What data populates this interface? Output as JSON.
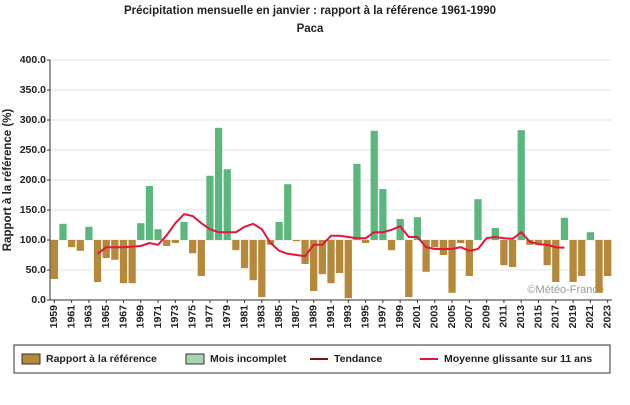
{
  "chart_data": {
    "type": "bar",
    "title": "Précipitation mensuelle en janvier : rapport à la référence 1961-1990",
    "subtitle": "Paca",
    "y_label": "Rapport à la référence (%)",
    "annotation": "©Météo-France",
    "categories": [
      "1959",
      null,
      "1961",
      null,
      "1963",
      null,
      "1965",
      null,
      "1967",
      null,
      "1969",
      null,
      "1971",
      null,
      "1973",
      null,
      "1975",
      null,
      "1977",
      null,
      "1979",
      null,
      "1981",
      null,
      "1983",
      null,
      "1985",
      null,
      "1987",
      null,
      "1989",
      null,
      "1991",
      null,
      "1993",
      null,
      "1995",
      null,
      "1997",
      null,
      "1999",
      null,
      "2001",
      null,
      "2003",
      null,
      "2005",
      null,
      "2007",
      null,
      "2009",
      null,
      "2011",
      null,
      "2013",
      null,
      "2015",
      null,
      "2017",
      null,
      "2019",
      null,
      "2021",
      null,
      "2023"
    ],
    "bar_base": 100,
    "series": [
      {
        "name": "Rapport à la référence",
        "color": "#b5883a",
        "color_above": "#5cb67e",
        "values": [
          35,
          127,
          88,
          82,
          122,
          30,
          70,
          67,
          28,
          28,
          128,
          190,
          118,
          90,
          95,
          130,
          78,
          40,
          207,
          287,
          218,
          83,
          53,
          33,
          5,
          92,
          130,
          193,
          98,
          60,
          15,
          43,
          28,
          45,
          3,
          227,
          95,
          282,
          185,
          83,
          135,
          5,
          138,
          47,
          88,
          75,
          12,
          95,
          40,
          168,
          100,
          120,
          58,
          55,
          283,
          92,
          92,
          58,
          30,
          137,
          30,
          40,
          113,
          12,
          40
        ]
      },
      {
        "name": "Mois incomplet",
        "color": "#a8d5b0"
      },
      {
        "name": "Tendance",
        "color": "#7a1010"
      },
      {
        "name": "Moyenne glissante sur 11 ans",
        "color": "#e8143c",
        "values": [
          null,
          null,
          null,
          null,
          null,
          77,
          88,
          88,
          88,
          89,
          90,
          95,
          92,
          108,
          128,
          143,
          140,
          128,
          118,
          113,
          113,
          113,
          122,
          127,
          118,
          95,
          82,
          77,
          75,
          73,
          92,
          92,
          107,
          107,
          105,
          103,
          103,
          113,
          113,
          117,
          123,
          105,
          105,
          88,
          85,
          85,
          85,
          88,
          82,
          85,
          103,
          105,
          103,
          102,
          113,
          97,
          93,
          92,
          88,
          87,
          null,
          null,
          null,
          null,
          null
        ]
      }
    ],
    "ylim": [
      0,
      400
    ],
    "yticks": [
      {
        "value": 0,
        "label": "0.0"
      },
      {
        "value": 50,
        "label": "50.0"
      },
      {
        "value": 100,
        "label": "100.0"
      },
      {
        "value": 150,
        "label": "150.0"
      },
      {
        "value": 200,
        "label": "200.0"
      },
      {
        "value": 250,
        "label": "250.0"
      },
      {
        "value": 300,
        "label": "300.0"
      },
      {
        "value": 350,
        "label": "350.0"
      },
      {
        "value": 400,
        "label": "400.0"
      }
    ],
    "grid": true
  }
}
